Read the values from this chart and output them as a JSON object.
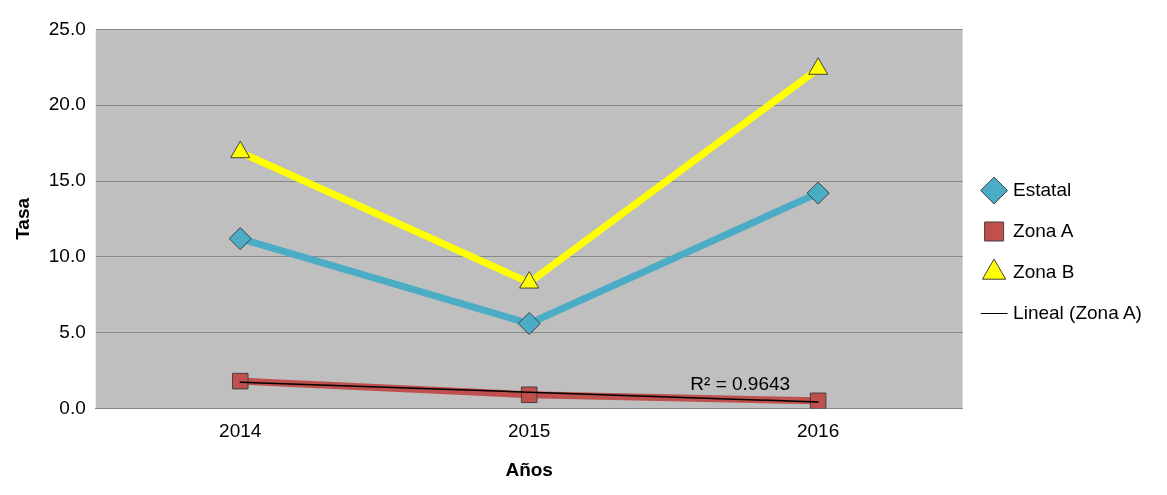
{
  "chart_data": {
    "type": "line",
    "xlabel": "Años",
    "ylabel": "Tasa",
    "categories": [
      "2014",
      "2015",
      "2016"
    ],
    "series": [
      {
        "name": "Estatal",
        "color": "#4bacc6",
        "values": [
          11.2,
          5.6,
          14.2
        ],
        "marker": "diamond"
      },
      {
        "name": "Zona A",
        "color": "#c0504d",
        "values": [
          1.8,
          0.9,
          0.5
        ],
        "marker": "square"
      },
      {
        "name": "Zona B",
        "color": "#ffff00",
        "values": [
          16.9,
          8.3,
          22.4
        ],
        "marker": "triangle"
      },
      {
        "name": "Lineal (Zona A)",
        "color": "#000000",
        "values": [
          1.72,
          1.07,
          0.42
        ],
        "marker": "none"
      }
    ],
    "ylim": [
      0,
      25
    ],
    "yticks": [
      {
        "value": 0,
        "label": "0.0"
      },
      {
        "value": 5,
        "label": "5.0"
      },
      {
        "value": 10,
        "label": "10.0"
      },
      {
        "value": 15,
        "label": "15.0"
      },
      {
        "value": 20,
        "label": "20.0"
      },
      {
        "value": 25,
        "label": "25.0"
      }
    ],
    "grid": "y",
    "legend": "right",
    "annotations": [
      {
        "text": "R² = 0.9643",
        "x": "2016",
        "y": 0.42
      }
    ]
  }
}
